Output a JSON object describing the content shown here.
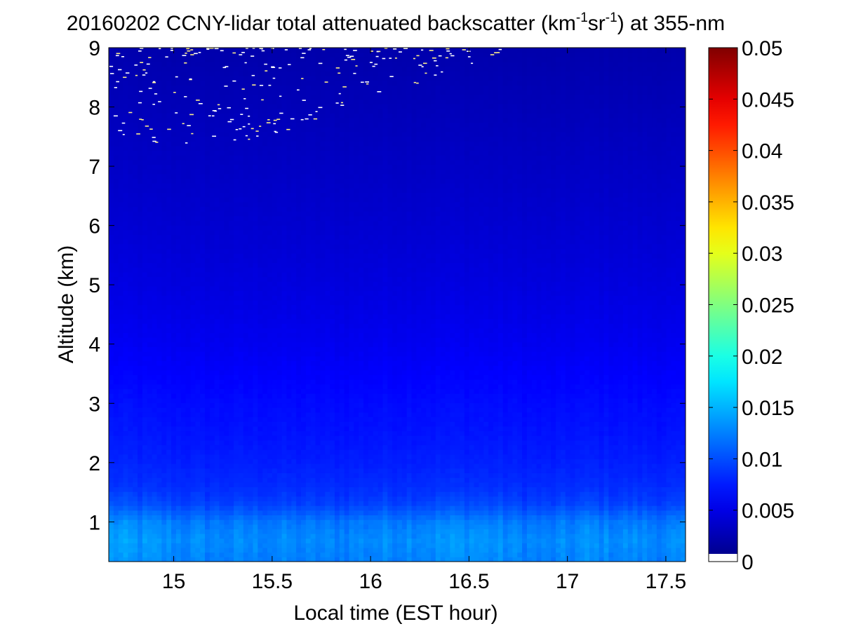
{
  "chart_data": {
    "type": "heatmap",
    "title": {
      "date": "20160202",
      "prefix": "CCNY-lidar total attenuated backscatter (km",
      "exp1": "-1",
      "mid": "sr",
      "exp2": "-1",
      "suffix": ") at 355-nm"
    },
    "xlabel": "Local time (EST hour)",
    "ylabel": "Altitude (km)",
    "xlim": [
      14.67,
      17.6
    ],
    "ylim": [
      0.33,
      9
    ],
    "x_ticks": [
      15,
      15.5,
      16,
      16.5,
      17,
      17.5
    ],
    "x_tick_labels": [
      "15",
      "15.5",
      "16",
      "16.5",
      "17",
      "17.5"
    ],
    "y_ticks": [
      1,
      2,
      3,
      4,
      5,
      6,
      7,
      8,
      9
    ],
    "y_tick_labels": [
      "1",
      "2",
      "3",
      "4",
      "5",
      "6",
      "7",
      "8",
      "9"
    ],
    "colorbar": {
      "colormap": "jet",
      "clim": [
        0,
        0.05
      ],
      "ticks": [
        0,
        0.005,
        0.01,
        0.015,
        0.02,
        0.025,
        0.03,
        0.035,
        0.04,
        0.045,
        0.05
      ],
      "tick_labels": [
        "0",
        "0.005",
        "0.01",
        "0.015",
        "0.02",
        "0.025",
        "0.03",
        "0.035",
        "0.04",
        "0.045",
        "0.05"
      ]
    },
    "altitude_profile_km": [
      0.4,
      0.7,
      1.0,
      1.3,
      1.6,
      2.0,
      2.5,
      3.0,
      3.5,
      4.0,
      5.0,
      6.0,
      7.0,
      8.0,
      9.0
    ],
    "backscatter_profile": [
      0.013,
      0.0135,
      0.0125,
      0.0098,
      0.0085,
      0.0078,
      0.0072,
      0.0068,
      0.0062,
      0.0056,
      0.0047,
      0.004,
      0.0034,
      0.0028,
      0.0022
    ],
    "time_modulation": {
      "times": [
        14.7,
        14.9,
        15.1,
        15.3,
        15.5,
        15.7,
        15.9,
        16.1,
        16.3,
        16.5,
        16.7,
        16.9,
        17.1,
        17.3,
        17.5
      ],
      "factors": [
        1.05,
        1.0,
        0.97,
        0.96,
        0.97,
        0.95,
        0.96,
        0.99,
        1.0,
        1.02,
        0.98,
        0.94,
        1.0,
        0.98,
        0.96
      ]
    },
    "colors": {
      "jet_dark_blue": "#00008f",
      "jet_dark_red": "#800000",
      "no_data_color": "#ffffff"
    }
  }
}
